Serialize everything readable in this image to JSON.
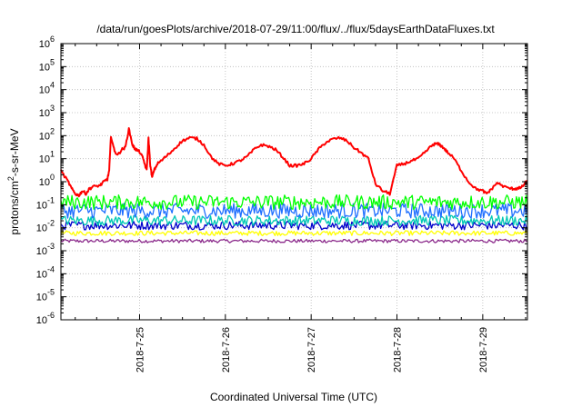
{
  "chart_data": {
    "type": "line",
    "title": "/data/run/goesPlots/archive/2018-07-29/11:00/flux/../flux/5daysEarthDataFluxes.txt",
    "xlabel": "Coordinated Universal Time (UTC)",
    "ylabel": {
      "base": "protons/cm",
      "sup": "2",
      "rest": "-s-sr-MeV"
    },
    "scale": {
      "y": "log",
      "x": "time"
    },
    "grid": true,
    "xlim": [
      "2018-07-24T02:00",
      "2018-07-29T12:30"
    ],
    "ylim": [
      1e-06,
      1000000.0
    ],
    "y_ticks": [
      {
        "value": 1e-06,
        "base": "10",
        "exp": "-6"
      },
      {
        "value": 1e-05,
        "base": "10",
        "exp": "-5"
      },
      {
        "value": 0.0001,
        "base": "10",
        "exp": "-4"
      },
      {
        "value": 0.001,
        "base": "10",
        "exp": "-3"
      },
      {
        "value": 0.01,
        "base": "10",
        "exp": "-2"
      },
      {
        "value": 0.1,
        "base": "10",
        "exp": "-1"
      },
      {
        "value": 1,
        "base": "10",
        "exp": "0"
      },
      {
        "value": 10,
        "base": "10",
        "exp": "1"
      },
      {
        "value": 100,
        "base": "10",
        "exp": "2"
      },
      {
        "value": 1000,
        "base": "10",
        "exp": "3"
      },
      {
        "value": 10000,
        "base": "10",
        "exp": "4"
      },
      {
        "value": 100000,
        "base": "10",
        "exp": "5"
      },
      {
        "value": 1000000,
        "base": "10",
        "exp": "6"
      }
    ],
    "x_ticks": [
      {
        "value": "2018-07-25T00:00",
        "label": "2018-7-25"
      },
      {
        "value": "2018-07-26T00:00",
        "label": "2018-7-26"
      },
      {
        "value": "2018-07-27T00:00",
        "label": "2018-7-27"
      },
      {
        "value": "2018-07-28T00:00",
        "label": "2018-7-28"
      },
      {
        "value": "2018-07-29T00:00",
        "label": "2018-7-29"
      }
    ],
    "series": [
      {
        "color": "#ff0000",
        "style": "smooth",
        "x": [
          "2018-07-24T02:00",
          "2018-07-24T04:00",
          "2018-07-24T05:00",
          "2018-07-24T06:00",
          "2018-07-24T07:00",
          "2018-07-24T08:00",
          "2018-07-24T09:00",
          "2018-07-24T10:00",
          "2018-07-24T11:00",
          "2018-07-24T13:00",
          "2018-07-24T14:00",
          "2018-07-24T15:00",
          "2018-07-24T15:30",
          "2018-07-24T16:00",
          "2018-07-24T17:00",
          "2018-07-24T18:00",
          "2018-07-24T19:00",
          "2018-07-24T20:00",
          "2018-07-24T21:00",
          "2018-07-24T22:00",
          "2018-07-24T22:30",
          "2018-07-24T23:00",
          "2018-07-25T00:00",
          "2018-07-25T01:00",
          "2018-07-25T02:00",
          "2018-07-25T02:30",
          "2018-07-25T03:00",
          "2018-07-25T03:30",
          "2018-07-25T04:00",
          "2018-07-25T05:00",
          "2018-07-25T06:00",
          "2018-07-25T08:00",
          "2018-07-25T10:00",
          "2018-07-25T12:00",
          "2018-07-25T14:00",
          "2018-07-25T16:00",
          "2018-07-25T18:00",
          "2018-07-25T20:00",
          "2018-07-25T22:00",
          "2018-07-26T00:00",
          "2018-07-26T02:00",
          "2018-07-26T04:00",
          "2018-07-26T06:00",
          "2018-07-26T08:00",
          "2018-07-26T10:00",
          "2018-07-26T12:00",
          "2018-07-26T14:00",
          "2018-07-26T16:00",
          "2018-07-26T18:00",
          "2018-07-26T20:00",
          "2018-07-26T22:00",
          "2018-07-27T00:00",
          "2018-07-27T02:00",
          "2018-07-27T04:00",
          "2018-07-27T06:00",
          "2018-07-27T08:00",
          "2018-07-27T10:00",
          "2018-07-27T12:00",
          "2018-07-27T14:00",
          "2018-07-27T16:00",
          "2018-07-27T18:00",
          "2018-07-27T20:00",
          "2018-07-27T22:00",
          "2018-07-28T00:00",
          "2018-07-28T02:00",
          "2018-07-28T04:00",
          "2018-07-28T06:00",
          "2018-07-28T08:00",
          "2018-07-28T10:00",
          "2018-07-28T11:00",
          "2018-07-28T12:00",
          "2018-07-28T13:00",
          "2018-07-28T14:00",
          "2018-07-28T16:00",
          "2018-07-28T18:00",
          "2018-07-28T20:00",
          "2018-07-28T22:00",
          "2018-07-29T00:00",
          "2018-07-29T01:00",
          "2018-07-29T02:00",
          "2018-07-29T04:00",
          "2018-07-29T06:00",
          "2018-07-29T08:00",
          "2018-07-29T09:00",
          "2018-07-29T10:00",
          "2018-07-29T11:00",
          "2018-07-29T12:00",
          "2018-07-29T12:30"
        ],
        "y": [
          3.0,
          1.0,
          0.5,
          0.3,
          0.25,
          0.4,
          0.3,
          0.5,
          0.6,
          0.7,
          1.0,
          1.3,
          3,
          100,
          20,
          15,
          25,
          30,
          200,
          40,
          30,
          25,
          20,
          10,
          3,
          80,
          5,
          1.5,
          3,
          6,
          8,
          15,
          30,
          60,
          80,
          75,
          40,
          12,
          6,
          5,
          6,
          8,
          12,
          25,
          40,
          35,
          25,
          12,
          5,
          5,
          6,
          10,
          25,
          50,
          70,
          80,
          60,
          30,
          18,
          10,
          0.8,
          0.4,
          0.3,
          5,
          6,
          8,
          10,
          20,
          40,
          45,
          40,
          30,
          20,
          10,
          3,
          1,
          0.5,
          0.4,
          0.3,
          0.4,
          0.9,
          0.6,
          0.5,
          0.5,
          0.5,
          0.6,
          0.9,
          1.0
        ]
      },
      {
        "color": "#00ff00",
        "style": "noise",
        "x_start": "2018-07-24T02:00",
        "x_end": "2018-07-29T12:30",
        "y_low": 0.06,
        "y_high": 0.28
      },
      {
        "color": "#1f6fff",
        "style": "noise",
        "x_start": "2018-07-24T02:00",
        "x_end": "2018-07-29T12:30",
        "y_low": 0.025,
        "y_high": 0.12
      },
      {
        "color": "#00c8b4",
        "style": "noise",
        "x_start": "2018-07-24T02:00",
        "x_end": "2018-07-29T12:30",
        "y_low": 0.012,
        "y_high": 0.035
      },
      {
        "color": "#0000cc",
        "style": "noise",
        "x_start": "2018-07-24T02:00",
        "x_end": "2018-07-29T12:30",
        "y_low": 0.008,
        "y_high": 0.02
      },
      {
        "color": "#ffff00",
        "style": "noise",
        "x_start": "2018-07-24T02:00",
        "x_end": "2018-07-29T12:30",
        "y_low": 0.0045,
        "y_high": 0.0075
      },
      {
        "color": "#8b2a8b",
        "style": "noise",
        "x_start": "2018-07-24T02:00",
        "x_end": "2018-07-29T12:30",
        "y_low": 0.0022,
        "y_high": 0.0032
      }
    ]
  }
}
